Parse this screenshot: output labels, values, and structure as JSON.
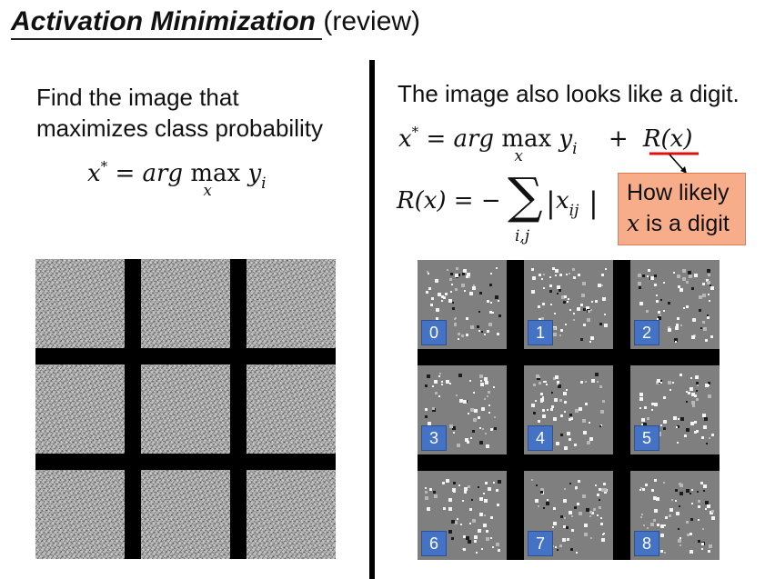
{
  "title": {
    "main": "Activation Minimization",
    "suffix": "(review)"
  },
  "left": {
    "line1": "Find the image that",
    "line2": "maximizes class probability",
    "formula": {
      "lhs": "x",
      "star": "*",
      "eq": "=",
      "arg": "arg",
      "max": "max",
      "under": "x",
      "y": "y",
      "sub": "i"
    }
  },
  "right": {
    "heading": "The image also looks like a digit.",
    "formula1": {
      "lhs": "x",
      "star": "*",
      "eq": "=",
      "arg": "arg",
      "max": "max",
      "under": "x",
      "y": "y",
      "sub": "i",
      "plus": "+",
      "r": "R(x)"
    },
    "formula2": {
      "lhs": "R(x)",
      "eq": "=",
      "minus": "−",
      "sum": "∑",
      "under": "i,j",
      "bar": "|",
      "x": "x",
      "sub": "ij"
    },
    "callout": {
      "line1": "How likely",
      "var": "x",
      "line2": " is a digit"
    }
  },
  "digit_labels": [
    "0",
    "1",
    "2",
    "3",
    "4",
    "5",
    "6",
    "7",
    "8"
  ],
  "colors": {
    "label_bg": "#4472c4",
    "callout_bg": "#f8ad8a",
    "underline_red": "#e01010"
  }
}
